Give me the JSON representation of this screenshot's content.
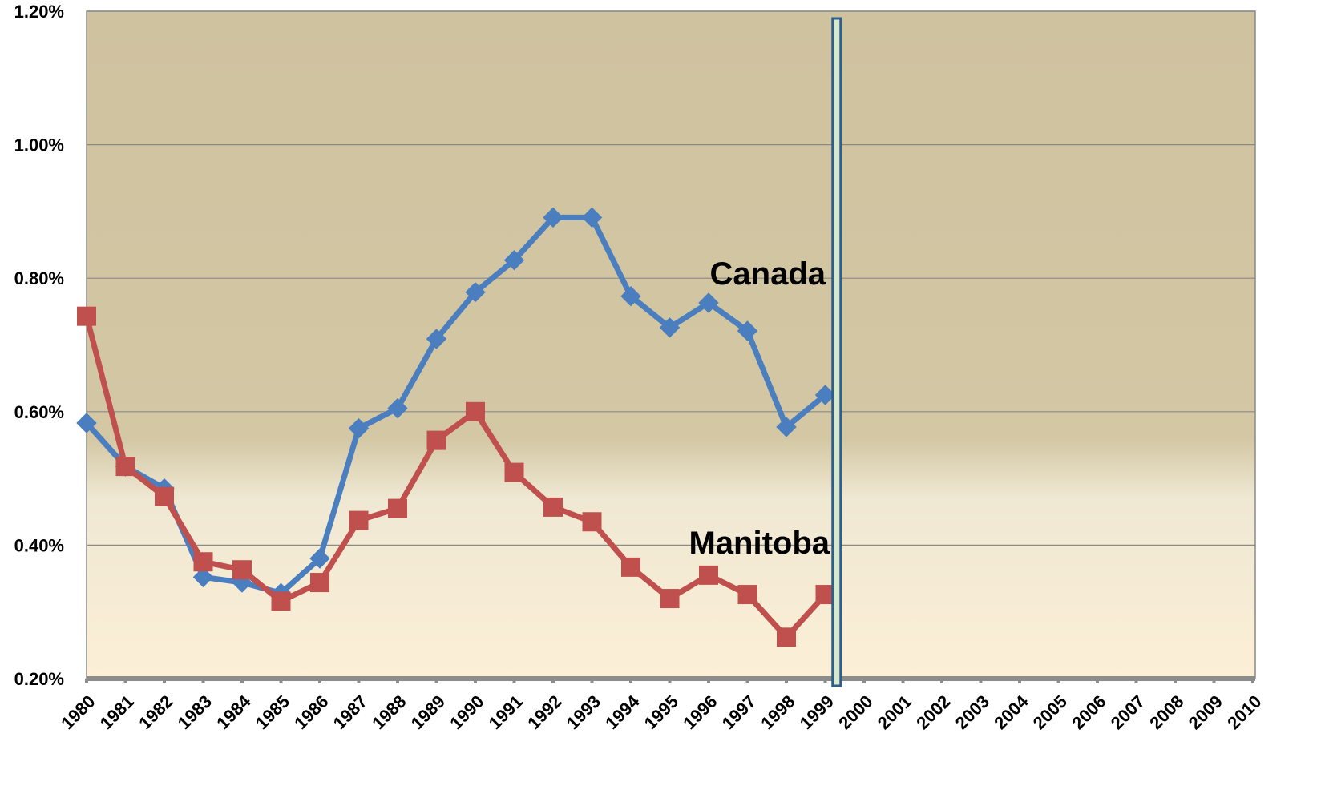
{
  "chart_data": {
    "type": "line",
    "categories": [
      "1980",
      "1981",
      "1982",
      "1983",
      "1984",
      "1985",
      "1986",
      "1987",
      "1988",
      "1989",
      "1990",
      "1991",
      "1992",
      "1993",
      "1994",
      "1995",
      "1996",
      "1997",
      "1998",
      "1999",
      "2000",
      "2001",
      "2002",
      "2003",
      "2004",
      "2005",
      "2006",
      "2007",
      "2008",
      "2009",
      "2010"
    ],
    "series": [
      {
        "name": "Canada",
        "color": "#4a7ebf",
        "values": [
          0.583,
          0.518,
          0.485,
          0.352,
          0.344,
          0.328,
          0.38,
          0.575,
          0.605,
          0.709,
          0.779,
          0.827,
          0.891,
          0.891,
          0.773,
          0.726,
          0.763,
          0.721,
          0.577,
          0.625,
          null,
          null,
          null,
          null,
          null,
          null,
          null,
          null,
          null,
          null,
          null
        ]
      },
      {
        "name": "Manitoba",
        "color": "#c0504d",
        "values": [
          0.743,
          0.518,
          0.473,
          0.375,
          0.363,
          0.316,
          0.344,
          0.437,
          0.455,
          0.557,
          0.6,
          0.509,
          0.457,
          0.435,
          0.367,
          0.32,
          0.355,
          0.326,
          0.262,
          0.326,
          null,
          null,
          null,
          null,
          null,
          null,
          null,
          null,
          null,
          null,
          null
        ]
      }
    ],
    "ylim": [
      0.2,
      1.2
    ],
    "yticks": [
      {
        "value": 0.2,
        "label": "0.20%"
      },
      {
        "value": 0.4,
        "label": "0.40%"
      },
      {
        "value": 0.6,
        "label": "0.60%"
      },
      {
        "value": 0.8,
        "label": "0.80%"
      },
      {
        "value": 1.0,
        "label": "1.00%"
      },
      {
        "value": 1.2,
        "label": "1.20%"
      }
    ],
    "grid": true
  }
}
